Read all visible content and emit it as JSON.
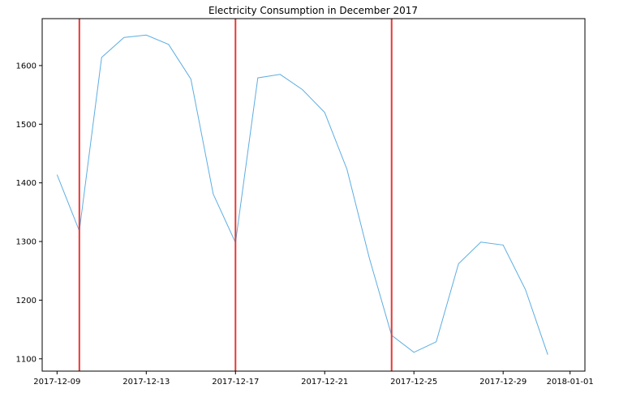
{
  "chart_data": {
    "type": "line",
    "title": "Electricity Consumption in December 2017",
    "xlabel": "",
    "ylabel": "",
    "grid": false,
    "xlim": [
      "2017-12-08 08:00",
      "2018-01-01 16:00"
    ],
    "ylim": [
      1079,
      1680
    ],
    "x_ticks": [
      "2017-12-09",
      "2017-12-13",
      "2017-12-17",
      "2017-12-21",
      "2017-12-25",
      "2017-12-29",
      "2018-01-01"
    ],
    "y_ticks": [
      1100,
      1200,
      1300,
      1400,
      1500,
      1600
    ],
    "series": [
      {
        "color": "#5dade2",
        "x": [
          "2017-12-09",
          "2017-12-10",
          "2017-12-11",
          "2017-12-12",
          "2017-12-13",
          "2017-12-14",
          "2017-12-15",
          "2017-12-16",
          "2017-12-17",
          "2017-12-18",
          "2017-12-19",
          "2017-12-20",
          "2017-12-21",
          "2017-12-22",
          "2017-12-23",
          "2017-12-24",
          "2017-12-25",
          "2017-12-26",
          "2017-12-27",
          "2017-12-28",
          "2017-12-29",
          "2017-12-30",
          "2017-12-31"
        ],
        "values": [
          1414,
          1318,
          1614,
          1648,
          1652,
          1636,
          1577,
          1381,
          1298,
          1579,
          1585,
          1559,
          1520,
          1423,
          1272,
          1140,
          1111,
          1129,
          1262,
          1299,
          1294,
          1218,
          1107
        ]
      }
    ],
    "vertical_lines": {
      "color": "#e53935",
      "x": [
        "2017-12-10",
        "2017-12-17",
        "2017-12-24"
      ]
    }
  }
}
